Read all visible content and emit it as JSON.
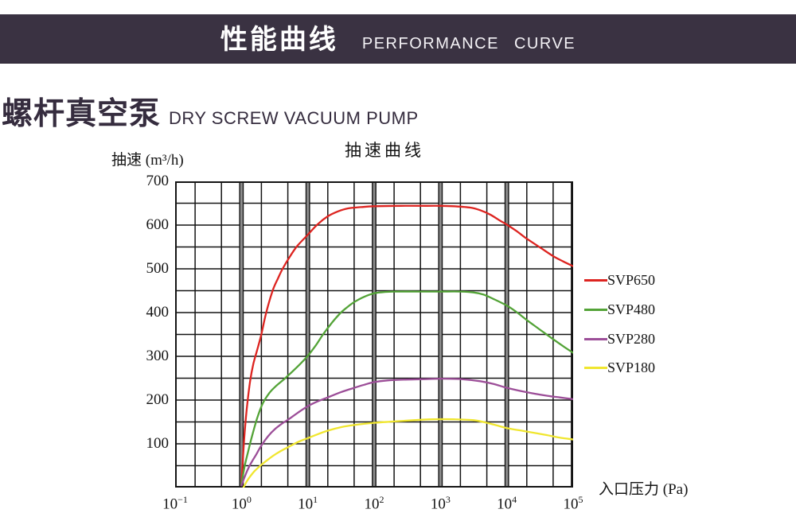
{
  "header": {
    "title_zh": "性能曲线",
    "title_en": "PERFORMANCE CURVE"
  },
  "product": {
    "title_zh": "螺杆真空泵",
    "title_en": "DRY SCREW VACUUM PUMP"
  },
  "colors": {
    "header_bg": "#3a3242",
    "heading_text": "#352c3e",
    "grid": "#141414",
    "decade_band": "#8d8d8d",
    "svp650": "#dd2420",
    "svp480": "#53a337",
    "svp280": "#9c4e98",
    "svp180": "#f0e62f"
  },
  "chart_data": {
    "type": "line",
    "title": "抽速曲线",
    "ylabel": "抽速 (m³/h)",
    "xlabel": "入口压力 (Pa)",
    "x_scale": "log10",
    "xlim_log": [
      -1,
      5
    ],
    "x_tick_exponents": [
      -1,
      0,
      1,
      2,
      3,
      4,
      5
    ],
    "x_minor_multiples": [
      2,
      5
    ],
    "ylim": [
      0,
      700
    ],
    "y_grid_step": 50,
    "y_tick_labels": [
      700,
      600,
      500,
      400,
      300,
      200,
      100
    ],
    "grid": true,
    "legend_position": "right-outside",
    "series": [
      {
        "name": "SVP650",
        "color": "#dd2420",
        "points_logx_y": [
          [
            0,
            10
          ],
          [
            0.04,
            110
          ],
          [
            0.08,
            180
          ],
          [
            0.13,
            243
          ],
          [
            0.18,
            283
          ],
          [
            0.24,
            316
          ],
          [
            0.3,
            350
          ],
          [
            0.37,
            398
          ],
          [
            0.47,
            450
          ],
          [
            0.55,
            478
          ],
          [
            0.62,
            500
          ],
          [
            0.73,
            528
          ],
          [
            0.84,
            552
          ],
          [
            1.0,
            578
          ],
          [
            1.15,
            602
          ],
          [
            1.3,
            620
          ],
          [
            1.45,
            631
          ],
          [
            1.6,
            638
          ],
          [
            1.8,
            641
          ],
          [
            2.0,
            643
          ],
          [
            2.4,
            644
          ],
          [
            2.8,
            644
          ],
          [
            3.0,
            644
          ],
          [
            3.2,
            643
          ],
          [
            3.45,
            640
          ],
          [
            3.6,
            634
          ],
          [
            3.75,
            624
          ],
          [
            3.9,
            610
          ],
          [
            4.0,
            601
          ],
          [
            4.15,
            586
          ],
          [
            4.3,
            569
          ],
          [
            4.5,
            549
          ],
          [
            4.7,
            529
          ],
          [
            4.85,
            517
          ],
          [
            5.0,
            506
          ]
        ]
      },
      {
        "name": "SVP480",
        "color": "#53a337",
        "points_logx_y": [
          [
            0,
            8
          ],
          [
            0.05,
            50
          ],
          [
            0.1,
            82
          ],
          [
            0.16,
            118
          ],
          [
            0.24,
            160
          ],
          [
            0.32,
            192
          ],
          [
            0.42,
            216
          ],
          [
            0.52,
            232
          ],
          [
            0.66,
            250
          ],
          [
            0.85,
            277
          ],
          [
            1.0,
            301
          ],
          [
            1.12,
            325
          ],
          [
            1.23,
            350
          ],
          [
            1.37,
            378
          ],
          [
            1.5,
            400
          ],
          [
            1.6,
            413
          ],
          [
            1.7,
            424
          ],
          [
            1.85,
            436
          ],
          [
            2.0,
            444
          ],
          [
            2.15,
            447
          ],
          [
            2.3,
            448
          ],
          [
            2.7,
            448
          ],
          [
            3.0,
            448
          ],
          [
            3.3,
            448
          ],
          [
            3.5,
            446
          ],
          [
            3.65,
            441
          ],
          [
            3.8,
            431
          ],
          [
            4.0,
            416
          ],
          [
            4.15,
            401
          ],
          [
            4.3,
            383
          ],
          [
            4.5,
            361
          ],
          [
            4.7,
            339
          ],
          [
            4.85,
            323
          ],
          [
            5.0,
            308
          ]
        ]
      },
      {
        "name": "SVP280",
        "color": "#9c4e98",
        "points_logx_y": [
          [
            0,
            5
          ],
          [
            0.05,
            25
          ],
          [
            0.1,
            43
          ],
          [
            0.16,
            60
          ],
          [
            0.22,
            75
          ],
          [
            0.3,
            96
          ],
          [
            0.4,
            117
          ],
          [
            0.5,
            133
          ],
          [
            0.6,
            145
          ],
          [
            0.7,
            155
          ],
          [
            0.85,
            171
          ],
          [
            1.0,
            186
          ],
          [
            1.15,
            197
          ],
          [
            1.3,
            206
          ],
          [
            1.5,
            218
          ],
          [
            1.7,
            228
          ],
          [
            1.85,
            235
          ],
          [
            2.0,
            241
          ],
          [
            2.2,
            245
          ],
          [
            2.5,
            247
          ],
          [
            2.8,
            248
          ],
          [
            3.0,
            249
          ],
          [
            3.3,
            248
          ],
          [
            3.6,
            243
          ],
          [
            3.8,
            237
          ],
          [
            4.0,
            228
          ],
          [
            4.3,
            218
          ],
          [
            4.6,
            210
          ],
          [
            4.8,
            206
          ],
          [
            5.0,
            202
          ]
        ]
      },
      {
        "name": "SVP180",
        "color": "#f0e62f",
        "points_logx_y": [
          [
            0.03,
            0
          ],
          [
            0.08,
            14
          ],
          [
            0.14,
            27
          ],
          [
            0.2,
            38
          ],
          [
            0.3,
            52
          ],
          [
            0.4,
            64
          ],
          [
            0.5,
            75
          ],
          [
            0.6,
            84
          ],
          [
            0.7,
            92
          ],
          [
            0.85,
            104
          ],
          [
            1.0,
            113
          ],
          [
            1.15,
            122
          ],
          [
            1.3,
            130
          ],
          [
            1.5,
            138
          ],
          [
            1.7,
            143
          ],
          [
            2.0,
            148
          ],
          [
            2.3,
            151
          ],
          [
            2.6,
            154
          ],
          [
            2.9,
            156
          ],
          [
            3.2,
            156
          ],
          [
            3.5,
            154
          ],
          [
            3.7,
            148
          ],
          [
            3.85,
            142
          ],
          [
            4.0,
            136
          ],
          [
            4.3,
            128
          ],
          [
            4.6,
            120
          ],
          [
            4.8,
            114
          ],
          [
            5.0,
            110
          ]
        ]
      }
    ]
  }
}
